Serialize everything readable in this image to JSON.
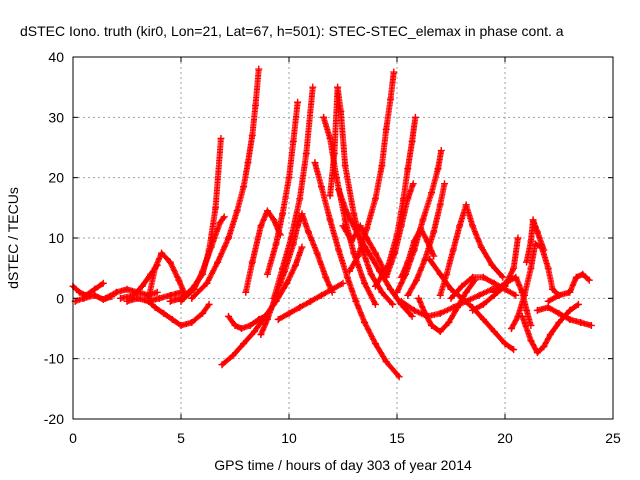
{
  "chart_data": {
    "type": "scatter",
    "title": "dSTEC Iono. truth (kir0, Lon=21, Lat=67, h=501): STEC-STEC_elemax in phase cont. a",
    "xlabel": "GPS time / hours of day 303 of year 2014",
    "ylabel": "dSTEC  / TECUs",
    "xlim": [
      0,
      25
    ],
    "ylim": [
      -20,
      40
    ],
    "xticks": [
      0,
      5,
      10,
      15,
      20,
      25
    ],
    "yticks": [
      -20,
      -10,
      0,
      10,
      20,
      30,
      40
    ],
    "xtick_labels": [
      "0",
      "5",
      "10",
      "15",
      "20",
      "25"
    ],
    "ytick_labels": [
      "-20",
      "-10",
      "0",
      "10",
      "20",
      "30",
      "40"
    ],
    "grid": true,
    "marker": "+",
    "color": "#ff0000",
    "series": [
      {
        "points": [
          [
            0.0,
            2.0
          ],
          [
            0.3,
            1.0
          ],
          [
            0.6,
            0.5
          ],
          [
            1.0,
            1.5
          ],
          [
            1.4,
            2.5
          ]
        ]
      },
      {
        "points": [
          [
            0.1,
            -0.5
          ],
          [
            0.5,
            0.0
          ],
          [
            1.0,
            0.5
          ],
          [
            1.4,
            -0.2
          ],
          [
            1.8,
            0.3
          ]
        ]
      },
      {
        "points": [
          [
            1.5,
            0.0
          ],
          [
            2.0,
            1.0
          ],
          [
            2.5,
            1.5
          ],
          [
            3.0,
            1.0
          ],
          [
            3.5,
            0.5
          ],
          [
            3.9,
            1.0
          ]
        ]
      },
      {
        "points": [
          [
            2.2,
            0.0
          ],
          [
            2.8,
            0.5
          ],
          [
            3.2,
            2.0
          ],
          [
            3.6,
            4.0
          ],
          [
            3.9,
            5.5
          ]
        ]
      },
      {
        "points": [
          [
            2.5,
            -0.5
          ],
          [
            3.0,
            0.0
          ],
          [
            3.5,
            -0.5
          ],
          [
            4.0,
            0.0
          ],
          [
            4.5,
            0.5
          ],
          [
            5.0,
            1.0
          ]
        ]
      },
      {
        "points": [
          [
            3.5,
            0.0
          ],
          [
            3.8,
            5.0
          ],
          [
            4.1,
            7.5
          ],
          [
            4.5,
            6.0
          ],
          [
            4.9,
            3.0
          ],
          [
            5.2,
            0.5
          ]
        ]
      },
      {
        "points": [
          [
            3.5,
            -0.5
          ],
          [
            3.8,
            -1.5
          ],
          [
            4.2,
            -2.5
          ],
          [
            4.6,
            -3.5
          ],
          [
            5.0,
            -4.5
          ],
          [
            5.5,
            -4.0
          ],
          [
            6.0,
            -2.5
          ],
          [
            6.3,
            -1.0
          ]
        ]
      },
      {
        "points": [
          [
            4.5,
            -0.5
          ],
          [
            5.0,
            0.0
          ],
          [
            5.5,
            1.5
          ],
          [
            6.0,
            4.0
          ],
          [
            6.3,
            8.0
          ],
          [
            6.6,
            15.0
          ],
          [
            6.85,
            26.5
          ]
        ]
      },
      {
        "points": [
          [
            5.0,
            -0.5
          ],
          [
            5.6,
            1.5
          ],
          [
            6.0,
            4.5
          ],
          [
            6.4,
            8.5
          ],
          [
            6.8,
            12.5
          ],
          [
            7.0,
            13.5
          ]
        ]
      },
      {
        "points": [
          [
            5.5,
            0.0
          ],
          [
            6.2,
            2.5
          ],
          [
            6.7,
            6.0
          ],
          [
            7.2,
            10.0
          ],
          [
            7.6,
            14.5
          ],
          [
            7.9,
            18.5
          ],
          [
            8.1,
            22.5
          ],
          [
            8.3,
            27.0
          ],
          [
            8.45,
            32.0
          ],
          [
            8.6,
            38.0
          ]
        ]
      },
      {
        "points": [
          [
            6.9,
            -11.0
          ],
          [
            7.4,
            -9.5
          ],
          [
            7.9,
            -7.5
          ],
          [
            8.4,
            -5.5
          ],
          [
            8.9,
            -3.0
          ],
          [
            9.4,
            -0.5
          ],
          [
            9.9,
            2.5
          ],
          [
            10.3,
            5.5
          ],
          [
            10.6,
            8.5
          ]
        ]
      },
      {
        "points": [
          [
            7.2,
            -3.0
          ],
          [
            7.5,
            -4.5
          ],
          [
            7.8,
            -5.0
          ],
          [
            8.2,
            -4.5
          ],
          [
            8.6,
            -3.5
          ],
          [
            8.9,
            -3.0
          ]
        ]
      },
      {
        "points": [
          [
            8.0,
            1.0
          ],
          [
            8.3,
            6.0
          ],
          [
            8.7,
            12.0
          ],
          [
            9.0,
            14.5
          ],
          [
            9.3,
            13.0
          ],
          [
            9.6,
            10.5
          ]
        ]
      },
      {
        "points": [
          [
            8.7,
            -6.0
          ],
          [
            9.0,
            -3.5
          ],
          [
            9.4,
            0.5
          ],
          [
            9.8,
            4.5
          ],
          [
            10.2,
            9.0
          ],
          [
            10.4,
            12.0
          ],
          [
            10.6,
            14.0
          ],
          [
            10.9,
            11.0
          ],
          [
            11.3,
            7.5
          ],
          [
            11.7,
            3.5
          ],
          [
            12.0,
            1.0
          ]
        ]
      },
      {
        "points": [
          [
            9.0,
            4.0
          ],
          [
            9.4,
            9.0
          ],
          [
            9.7,
            14.0
          ],
          [
            10.0,
            20.0
          ],
          [
            10.2,
            26.0
          ],
          [
            10.4,
            32.5
          ]
        ]
      },
      {
        "points": [
          [
            9.3,
            0.0
          ],
          [
            9.7,
            5.0
          ],
          [
            10.1,
            10.0
          ],
          [
            10.5,
            16.5
          ],
          [
            10.8,
            24.0
          ],
          [
            11.1,
            35.0
          ]
        ]
      },
      {
        "points": [
          [
            9.5,
            -3.5
          ],
          [
            10.0,
            -2.5
          ],
          [
            10.5,
            -1.5
          ],
          [
            11.0,
            -0.5
          ],
          [
            11.5,
            0.5
          ],
          [
            12.0,
            1.5
          ],
          [
            12.5,
            2.5
          ]
        ]
      },
      {
        "points": [
          [
            11.2,
            22.5
          ],
          [
            11.5,
            18.5
          ],
          [
            11.9,
            13.0
          ],
          [
            12.3,
            8.0
          ],
          [
            12.7,
            3.5
          ],
          [
            13.1,
            -0.5
          ],
          [
            13.5,
            -4.0
          ],
          [
            14.0,
            -7.5
          ],
          [
            14.5,
            -10.5
          ],
          [
            15.1,
            -13.0
          ]
        ]
      },
      {
        "points": [
          [
            11.6,
            30.0
          ],
          [
            11.9,
            26.5
          ],
          [
            12.2,
            20.0
          ],
          [
            12.6,
            13.0
          ],
          [
            13.0,
            7.5
          ],
          [
            13.5,
            2.5
          ],
          [
            14.0,
            -1.0
          ]
        ]
      },
      {
        "points": [
          [
            11.9,
            17.0
          ],
          [
            12.1,
            24.0
          ],
          [
            12.25,
            35.0
          ],
          [
            12.4,
            31.0
          ],
          [
            12.6,
            22.0
          ],
          [
            13.0,
            14.0
          ],
          [
            13.4,
            8.0
          ],
          [
            13.8,
            4.0
          ],
          [
            14.3,
            1.0
          ],
          [
            14.8,
            -1.0
          ]
        ]
      },
      {
        "points": [
          [
            12.3,
            18.0
          ],
          [
            12.7,
            14.0
          ],
          [
            13.2,
            10.5
          ],
          [
            13.7,
            7.5
          ],
          [
            14.2,
            4.5
          ],
          [
            14.7,
            1.5
          ],
          [
            15.2,
            -1.0
          ],
          [
            15.7,
            -3.0
          ]
        ]
      },
      {
        "points": [
          [
            12.5,
            12.0
          ],
          [
            12.9,
            9.5
          ],
          [
            13.3,
            12.0
          ],
          [
            13.6,
            10.0
          ],
          [
            14.0,
            7.5
          ],
          [
            14.5,
            4.0
          ]
        ]
      },
      {
        "points": [
          [
            12.8,
            4.5
          ],
          [
            13.2,
            7.0
          ],
          [
            13.6,
            11.5
          ],
          [
            14.0,
            16.5
          ],
          [
            14.3,
            22.0
          ],
          [
            14.5,
            28.0
          ],
          [
            14.7,
            33.0
          ],
          [
            14.85,
            37.5
          ]
        ]
      },
      {
        "points": [
          [
            14.0,
            2.0
          ],
          [
            14.6,
            5.5
          ],
          [
            15.0,
            10.5
          ],
          [
            15.3,
            16.5
          ],
          [
            15.5,
            21.5
          ],
          [
            15.7,
            26.0
          ],
          [
            15.85,
            30.0
          ]
        ]
      },
      {
        "points": [
          [
            14.5,
            3.5
          ],
          [
            14.9,
            7.5
          ],
          [
            15.2,
            12.0
          ],
          [
            15.5,
            16.5
          ],
          [
            15.75,
            19.0
          ]
        ]
      },
      {
        "points": [
          [
            15.2,
            3.5
          ],
          [
            15.5,
            6.0
          ],
          [
            15.8,
            9.5
          ],
          [
            16.1,
            11.5
          ],
          [
            16.4,
            9.5
          ],
          [
            16.7,
            7.0
          ]
        ]
      },
      {
        "points": [
          [
            15.0,
            1.0
          ],
          [
            15.4,
            4.0
          ],
          [
            15.8,
            8.0
          ],
          [
            16.2,
            13.0
          ],
          [
            16.6,
            17.5
          ],
          [
            16.9,
            21.5
          ],
          [
            17.05,
            24.5
          ]
        ]
      },
      {
        "points": [
          [
            15.5,
            0.5
          ],
          [
            15.9,
            3.0
          ],
          [
            16.3,
            6.5
          ],
          [
            16.7,
            11.0
          ],
          [
            17.0,
            15.5
          ],
          [
            17.2,
            19.0
          ]
        ]
      },
      {
        "points": [
          [
            16.0,
            0.0
          ],
          [
            16.3,
            -2.5
          ],
          [
            16.6,
            -4.5
          ],
          [
            17.0,
            -5.5
          ],
          [
            17.4,
            -4.0
          ],
          [
            17.8,
            -1.5
          ],
          [
            18.2,
            1.0
          ],
          [
            18.6,
            3.0
          ]
        ]
      },
      {
        "points": [
          [
            15.2,
            -0.5
          ],
          [
            15.8,
            -2.0
          ],
          [
            16.4,
            -3.0
          ],
          [
            17.0,
            -2.5
          ],
          [
            17.6,
            -1.5
          ],
          [
            18.2,
            -0.5
          ],
          [
            18.8,
            0.5
          ],
          [
            19.4,
            1.5
          ],
          [
            20.0,
            2.0
          ]
        ]
      },
      {
        "points": [
          [
            17.0,
            0.5
          ],
          [
            17.3,
            4.0
          ],
          [
            17.6,
            8.0
          ],
          [
            17.9,
            12.0
          ],
          [
            18.2,
            15.5
          ],
          [
            18.5,
            12.0
          ],
          [
            18.9,
            8.5
          ],
          [
            19.4,
            5.5
          ],
          [
            19.9,
            3.5
          ]
        ]
      },
      {
        "points": [
          [
            17.5,
            0.0
          ],
          [
            18.0,
            2.0
          ],
          [
            18.5,
            3.5
          ],
          [
            19.0,
            3.5
          ],
          [
            19.5,
            2.5
          ],
          [
            20.0,
            1.5
          ],
          [
            20.5,
            0.5
          ]
        ]
      },
      {
        "points": [
          [
            16.5,
            6.5
          ],
          [
            17.0,
            4.0
          ],
          [
            17.5,
            1.5
          ],
          [
            18.0,
            0.0
          ],
          [
            18.5,
            -1.5
          ],
          [
            19.0,
            -3.5
          ],
          [
            19.5,
            -5.5
          ],
          [
            20.0,
            -7.5
          ],
          [
            20.4,
            -8.5
          ]
        ]
      },
      {
        "points": [
          [
            18.5,
            -2.0
          ],
          [
            19.0,
            -1.0
          ],
          [
            19.5,
            0.5
          ],
          [
            20.0,
            2.0
          ],
          [
            20.4,
            5.0
          ],
          [
            20.6,
            10.0
          ]
        ]
      },
      {
        "points": [
          [
            19.5,
            1.0
          ],
          [
            20.0,
            2.5
          ],
          [
            20.5,
            3.5
          ],
          [
            20.8,
            1.0
          ],
          [
            21.0,
            -2.0
          ],
          [
            21.2,
            -4.5
          ]
        ]
      },
      {
        "points": [
          [
            20.3,
            -5.0
          ],
          [
            20.6,
            -3.0
          ],
          [
            20.9,
            0.5
          ],
          [
            21.2,
            5.0
          ],
          [
            21.4,
            9.0
          ],
          [
            21.7,
            8.5
          ],
          [
            22.0,
            5.0
          ],
          [
            22.2,
            1.5
          ],
          [
            22.5,
            0.5
          ]
        ]
      },
      {
        "points": [
          [
            21.0,
            6.0
          ],
          [
            21.2,
            9.5
          ],
          [
            21.3,
            13.0
          ],
          [
            21.5,
            11.0
          ],
          [
            21.8,
            8.0
          ]
        ]
      },
      {
        "points": [
          [
            20.8,
            -3.0
          ],
          [
            21.2,
            -7.0
          ],
          [
            21.5,
            -9.0
          ],
          [
            21.8,
            -8.0
          ],
          [
            22.1,
            -6.0
          ],
          [
            22.5,
            -4.0
          ],
          [
            23.0,
            -2.0
          ],
          [
            23.4,
            -1.0
          ]
        ]
      },
      {
        "points": [
          [
            21.5,
            -2.0
          ],
          [
            22.0,
            -1.5
          ],
          [
            22.5,
            -2.5
          ],
          [
            23.0,
            -3.5
          ],
          [
            23.5,
            -4.0
          ],
          [
            24.0,
            -4.5
          ]
        ]
      },
      {
        "points": [
          [
            22.0,
            -0.5
          ],
          [
            22.5,
            0.5
          ],
          [
            23.0,
            1.0
          ],
          [
            23.3,
            3.5
          ],
          [
            23.6,
            4.0
          ],
          [
            23.9,
            3.0
          ]
        ]
      }
    ]
  }
}
